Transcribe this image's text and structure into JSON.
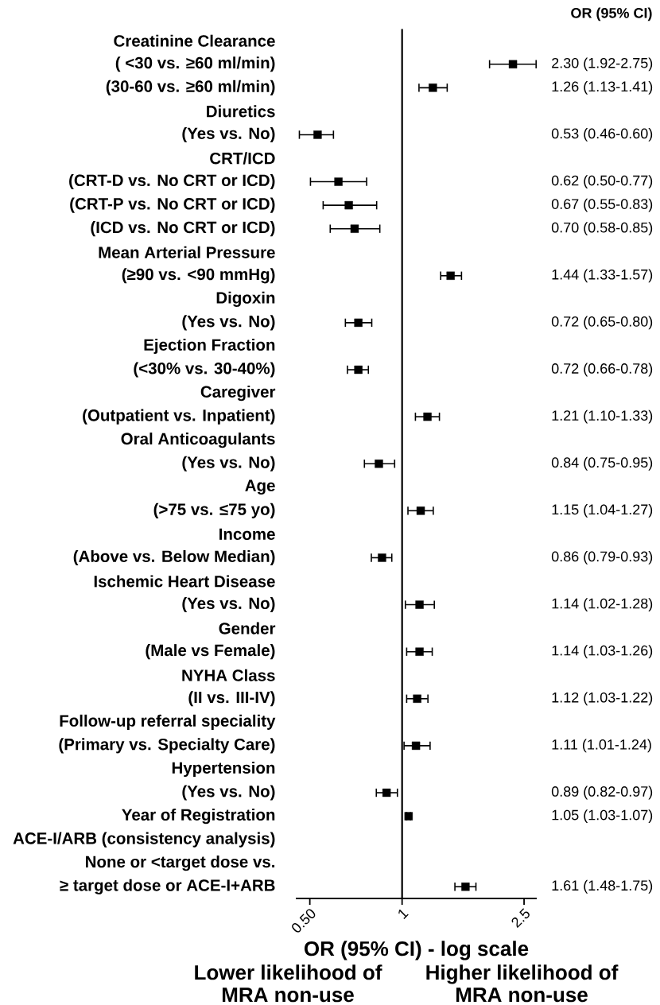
{
  "chart_data": {
    "type": "scatter",
    "orientation": "horizontal",
    "xlabel": "OR (95% CI) - log scale",
    "log": "x",
    "xlim": [
      0.45,
      2.75
    ],
    "xticks": [
      {
        "value": 0.5,
        "label": "0.50"
      },
      1,
      2.5
    ],
    "categories": [
      "Creatinine Clearance",
      "( <30 vs. ≥60 ml/min)",
      "(30-60 vs. ≥60 ml/min)",
      "Diuretics",
      "(Yes vs. No)",
      "CRT/ICD",
      "(CRT-D vs. No CRT or ICD)",
      "(CRT-P vs. No CRT or ICD)",
      "(ICD vs. No CRT or ICD)",
      "Mean Arterial Pressure",
      "(≥90 vs. <90 mmHg)",
      "Digoxin",
      "(Yes vs. No)",
      "Ejection Fraction",
      "(<30% vs. 30-40%)",
      "Caregiver",
      "(Outpatient vs. Inpatient)",
      "Oral Anticoagulants",
      "(Yes vs. No)",
      "Age",
      "(>75 vs. ≤75 yo)",
      "Income",
      "(Above vs. Below Median)",
      "Ischemic Heart Disease",
      "(Yes vs. No)",
      "Gender",
      "(Male vs Female)",
      "NYHA Class",
      "(II vs. III-IV)",
      "Follow-up referral speciality",
      "(Primary vs. Specialty Care)",
      "Hypertension",
      "(Yes vs. No)",
      "Year of Registration",
      "ACE-I/ARB (consistency analysis)",
      "None or <target dose vs.",
      "≥ target dose or ACE-I+ARB"
    ],
    "values": [
      null,
      2.3,
      1.26,
      null,
      0.53,
      null,
      0.62,
      0.67,
      0.7,
      null,
      1.44,
      null,
      0.72,
      null,
      0.72,
      null,
      1.21,
      null,
      0.84,
      null,
      1.15,
      null,
      0.86,
      null,
      1.14,
      null,
      1.14,
      null,
      1.12,
      null,
      1.11,
      null,
      0.89,
      1.05,
      null,
      null,
      1.61
    ],
    "errors": [
      null,
      [
        1.92,
        2.75
      ],
      [
        1.13,
        1.41
      ],
      null,
      [
        0.46,
        0.6
      ],
      null,
      [
        0.5,
        0.77
      ],
      [
        0.55,
        0.83
      ],
      [
        0.58,
        0.85
      ],
      null,
      [
        1.33,
        1.57
      ],
      null,
      [
        0.65,
        0.8
      ],
      null,
      [
        0.66,
        0.78
      ],
      null,
      [
        1.1,
        1.33
      ],
      null,
      [
        0.75,
        0.95
      ],
      null,
      [
        1.04,
        1.27
      ],
      null,
      [
        0.79,
        0.93
      ],
      null,
      [
        1.02,
        1.28
      ],
      null,
      [
        1.03,
        1.26
      ],
      null,
      [
        1.03,
        1.22
      ],
      null,
      [
        1.01,
        1.24
      ],
      null,
      [
        0.82,
        0.97
      ],
      [
        1.03,
        1.07
      ],
      null,
      null,
      [
        1.48,
        1.75
      ]
    ],
    "value_labels": [
      null,
      "2.30 (1.92-2.75)",
      "1.26 (1.13-1.41)",
      null,
      "0.53 (0.46-0.60)",
      null,
      "0.62 (0.50-0.77)",
      "0.67 (0.55-0.83)",
      "0.70 (0.58-0.85)",
      null,
      "1.44 (1.33-1.57)",
      null,
      "0.72 (0.65-0.80)",
      null,
      "0.72 (0.66-0.78)",
      null,
      "1.21 (1.10-1.33)",
      null,
      "0.84 (0.75-0.95)",
      null,
      "1.15 (1.04-1.27)",
      null,
      "0.86 (0.79-0.93)",
      null,
      "1.14 (1.02-1.28)",
      null,
      "1.14 (1.03-1.26)",
      null,
      "1.12 (1.03-1.22)",
      null,
      "1.11 (1.01-1.24)",
      null,
      "0.89 (0.82-0.97)",
      "1.05 (1.03-1.07)",
      null,
      null,
      "1.61 (1.48-1.75)"
    ],
    "color": "#000000",
    "marker": "square",
    "ref_lines": [
      {
        "axis": "x",
        "value": 1
      }
    ],
    "annotations": [
      "OR (95% CI)",
      "Lower likelihood of MRA non-use",
      "Higher likelihood of MRA non-use"
    ]
  }
}
